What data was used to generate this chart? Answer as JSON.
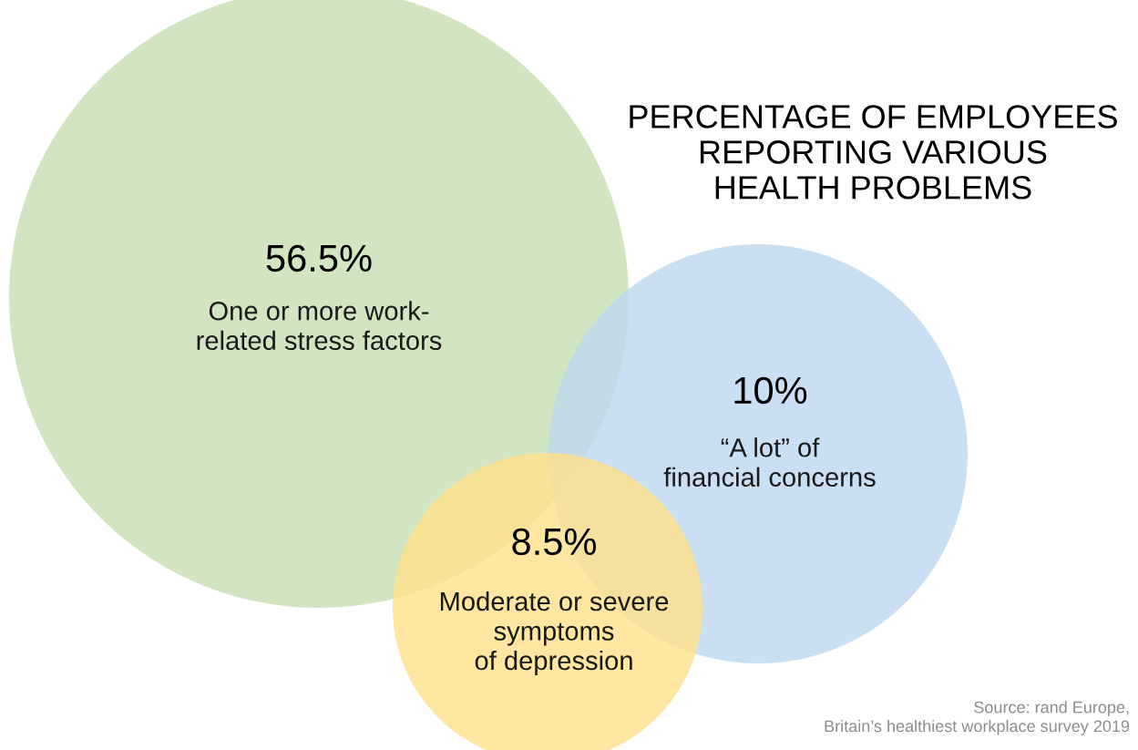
{
  "chart_data": {
    "type": "other",
    "title": "PERCENTAGE OF EMPLOYEES\nREPORTING VARIOUS\nHEALTH PROBLEMS",
    "categories": [
      "One or more work-\nrelated stress factors",
      "“A lot” of\nfinancial concerns",
      "Moderate or severe\nsymptoms\nof depression"
    ],
    "values": [
      56.5,
      10,
      8.5
    ],
    "value_labels": [
      "56.5%",
      "10%",
      "8.5%"
    ],
    "colors": [
      "#c5dfb4",
      "#bdd7ee",
      "#ffe08a"
    ],
    "annotations": [
      "Source: rand Europe,\nBritain’s healthiest workplace survey 2019"
    ]
  }
}
